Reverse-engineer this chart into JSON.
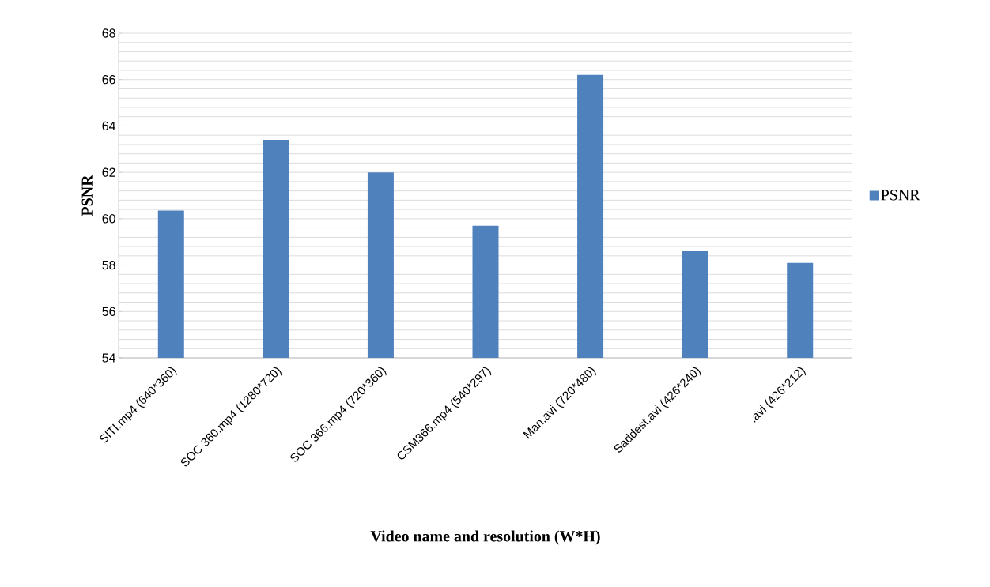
{
  "chart_data": {
    "type": "bar",
    "xlabel": "Video name and resolution (W*H)",
    "ylabel": "PSNR",
    "categories": [
      "SITI.mp4 (640*360)",
      "SOC 360.mp4 (1280*720)",
      "SOC 366.mp4 (720*360)",
      "CSM366.mp4 (540*297)",
      "Man.avi (720*480)",
      "Saddest.avi (426*240)",
      ".avi (426*212)"
    ],
    "series": [
      {
        "name": "PSNR",
        "color": "#4f81bd",
        "values": [
          60.35,
          63.4,
          62.0,
          59.7,
          66.2,
          58.6,
          58.1
        ]
      }
    ],
    "ylim": [
      54,
      68
    ],
    "yticks": [
      54,
      56,
      58,
      60,
      62,
      64,
      66,
      68
    ],
    "grid": "y",
    "legend": "right"
  }
}
